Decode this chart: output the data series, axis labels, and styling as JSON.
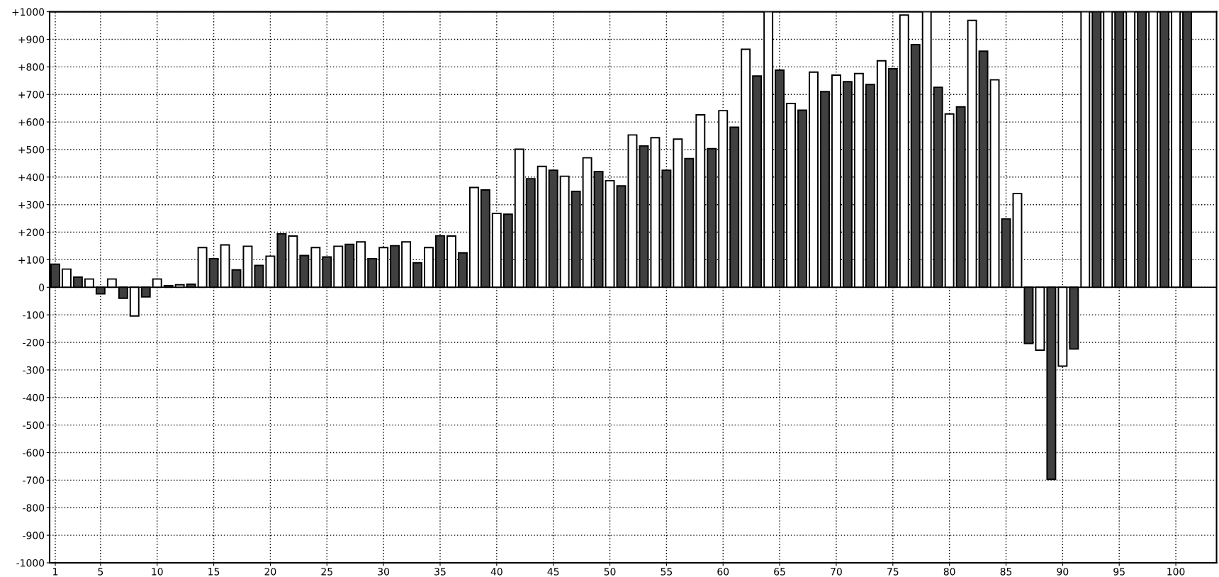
{
  "chart_data": {
    "type": "bar",
    "x": [
      1,
      2,
      3,
      4,
      5,
      6,
      7,
      8,
      9,
      10,
      11,
      12,
      13,
      14,
      15,
      16,
      17,
      18,
      19,
      20,
      21,
      22,
      23,
      24,
      25,
      26,
      27,
      28,
      29,
      30,
      31,
      32,
      33,
      34,
      35,
      36,
      37,
      38,
      39,
      40,
      41,
      42,
      43,
      44,
      45,
      46,
      47,
      48,
      49,
      50,
      51,
      52,
      53,
      54,
      55,
      56,
      57,
      58,
      59,
      60,
      61,
      62,
      63,
      64,
      65,
      66,
      67,
      68,
      69,
      70,
      71,
      72,
      73,
      74,
      75,
      76,
      77,
      78,
      79,
      80,
      81,
      82,
      83,
      84,
      85,
      86,
      87,
      88,
      89,
      90,
      91,
      92,
      93,
      94,
      95,
      96,
      97,
      98,
      99,
      100,
      101
    ],
    "values": [
      84,
      66,
      37,
      30,
      -24,
      30,
      -40,
      -104,
      -35,
      30,
      6,
      9,
      11,
      144,
      104,
      154,
      63,
      149,
      79,
      113,
      194,
      186,
      115,
      144,
      110,
      149,
      156,
      165,
      104,
      144,
      151,
      165,
      89,
      144,
      187,
      186,
      125,
      362,
      353,
      268,
      265,
      501,
      394,
      439,
      425,
      403,
      348,
      470,
      420,
      387,
      368,
      553,
      513,
      543,
      425,
      538,
      467,
      626,
      503,
      641,
      581,
      864,
      767,
      1000,
      788,
      667,
      643,
      781,
      710,
      770,
      746,
      776,
      736,
      822,
      793,
      988,
      881,
      1000,
      726,
      629,
      655,
      969,
      857,
      753,
      248,
      340,
      -204,
      -228,
      -697,
      -286,
      -224,
      1000,
      1000,
      1000,
      1000,
      1000,
      1000,
      1000,
      1000,
      1000,
      1000
    ],
    "colors": [
      "#404040",
      "#ffffff",
      "#404040",
      "#ffffff",
      "#404040",
      "#ffffff",
      "#404040",
      "#ffffff",
      "#404040",
      "#ffffff",
      "#404040",
      "#ffffff",
      "#404040",
      "#ffffff",
      "#404040",
      "#ffffff",
      "#404040",
      "#ffffff",
      "#404040",
      "#ffffff",
      "#404040",
      "#ffffff",
      "#404040",
      "#ffffff",
      "#404040",
      "#ffffff",
      "#404040",
      "#ffffff",
      "#404040",
      "#ffffff",
      "#404040",
      "#ffffff",
      "#404040",
      "#ffffff",
      "#404040",
      "#ffffff",
      "#404040",
      "#ffffff",
      "#404040",
      "#ffffff",
      "#404040",
      "#ffffff",
      "#404040",
      "#ffffff",
      "#404040",
      "#ffffff",
      "#404040",
      "#ffffff",
      "#404040",
      "#ffffff",
      "#404040",
      "#ffffff",
      "#404040",
      "#ffffff",
      "#404040",
      "#ffffff",
      "#404040",
      "#ffffff",
      "#404040",
      "#ffffff",
      "#404040",
      "#ffffff",
      "#404040",
      "#ffffff",
      "#404040",
      "#ffffff",
      "#404040",
      "#ffffff",
      "#404040",
      "#ffffff",
      "#404040",
      "#ffffff",
      "#404040",
      "#ffffff",
      "#404040",
      "#ffffff",
      "#404040",
      "#ffffff",
      "#404040",
      "#ffffff",
      "#404040",
      "#ffffff",
      "#404040",
      "#ffffff",
      "#404040",
      "#ffffff",
      "#404040",
      "#ffffff",
      "#404040",
      "#ffffff",
      "#404040",
      "#ffffff",
      "#404040",
      "#ffffff",
      "#404040",
      "#ffffff",
      "#404040",
      "#ffffff",
      "#404040",
      "#ffffff",
      "#404040"
    ],
    "xlim": [
      0.5,
      103.6
    ],
    "xticks": [
      1,
      5,
      10,
      15,
      20,
      25,
      30,
      35,
      40,
      45,
      50,
      55,
      60,
      65,
      70,
      75,
      80,
      85,
      90,
      95,
      100
    ],
    "ylim": [
      -1000,
      1000
    ],
    "yticks": [
      {
        "value": 1000,
        "label": "+1000"
      },
      {
        "value": 900,
        "label": "+900"
      },
      {
        "value": 800,
        "label": "+800"
      },
      {
        "value": 700,
        "label": "+700"
      },
      {
        "value": 600,
        "label": "+600"
      },
      {
        "value": 500,
        "label": "+500"
      },
      {
        "value": 400,
        "label": "+400"
      },
      {
        "value": 300,
        "label": "+300"
      },
      {
        "value": 200,
        "label": "+200"
      },
      {
        "value": 100,
        "label": "+100"
      },
      0,
      {
        "value": -100,
        "label": "-100"
      },
      {
        "value": -200,
        "label": "-200"
      },
      {
        "value": -300,
        "label": "-300"
      },
      {
        "value": -400,
        "label": "-400"
      },
      {
        "value": -500,
        "label": "-500"
      },
      {
        "value": -600,
        "label": "-600"
      },
      {
        "value": -700,
        "label": "-700"
      },
      {
        "value": -800,
        "label": "-800"
      },
      {
        "value": -900,
        "label": "-900"
      },
      {
        "value": -1000,
        "label": "-1000"
      }
    ],
    "grid": true,
    "legend": false
  }
}
